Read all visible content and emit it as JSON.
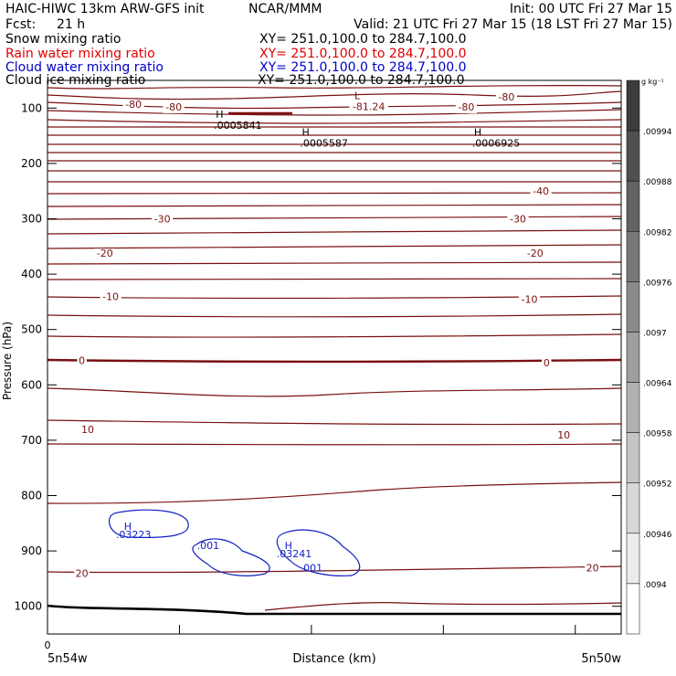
{
  "header": {
    "model": "HAIC-HIWC 13km ARW-GFS init",
    "org": "NCAR/MMM",
    "init": "Init: 00 UTC Fri 27 Mar 15",
    "fcst_label": "Fcst:",
    "fcst_value": "21 h",
    "valid": "Valid: 21 UTC Fri 27 Mar 15 (18 LST Fri 27 Mar 15)"
  },
  "fields": [
    {
      "name": "Snow mixing ratio",
      "xy": "XY= 251.0,100.0 to 284.7,100.0",
      "color": "#000000"
    },
    {
      "name": "Rain water mixing ratio",
      "xy": "XY= 251.0,100.0 to 284.7,100.0",
      "color": "#e00000"
    },
    {
      "name": "Cloud water mixing ratio",
      "xy": "XY= 251.0,100.0 to 284.7,100.0",
      "color": "#0000c8"
    },
    {
      "name": "Cloud ice mixing ratio",
      "xy": "XY= 251.0,100.0 to 284.7,100.0",
      "color": "#000000"
    }
  ],
  "chart_data": {
    "type": "contour",
    "xlabel": "Distance (km)",
    "ylabel": "Pressure (hPa)",
    "x_ticks": [
      {
        "label": "0"
      }
    ],
    "x_end_labels": [
      "5n54w",
      "5n50w"
    ],
    "y_ticks": [
      100,
      200,
      300,
      400,
      500,
      600,
      700,
      800,
      900,
      1000
    ],
    "ylim": [
      1050,
      50
    ],
    "temperature_labels": [
      {
        "text": "-80",
        "p": 93,
        "x": 0.15
      },
      {
        "text": "-80",
        "p": 98,
        "x": 0.22
      },
      {
        "text": "-80",
        "p": 80,
        "x": 0.8
      },
      {
        "text": "-80",
        "p": 98,
        "x": 0.73
      },
      {
        "text": "-81.24",
        "p": 97,
        "x": 0.56
      },
      {
        "text": "-40",
        "p": 250,
        "x": 0.86
      },
      {
        "text": "-30",
        "p": 300,
        "x": 0.2
      },
      {
        "text": "-30",
        "p": 300,
        "x": 0.82
      },
      {
        "text": "-20",
        "p": 362,
        "x": 0.1
      },
      {
        "text": "-20",
        "p": 362,
        "x": 0.85
      },
      {
        "text": "-10",
        "p": 440,
        "x": 0.11
      },
      {
        "text": "-10",
        "p": 445,
        "x": 0.84
      },
      {
        "text": "0",
        "p": 556,
        "x": 0.06
      },
      {
        "text": "0",
        "p": 560,
        "x": 0.87
      },
      {
        "text": "10",
        "p": 680,
        "x": 0.07
      },
      {
        "text": "10",
        "p": 690,
        "x": 0.9
      },
      {
        "text": "20",
        "p": 940,
        "x": 0.06
      },
      {
        "text": "20",
        "p": 930,
        "x": 0.95
      }
    ],
    "low_marker": {
      "symbol": "L",
      "p": 77,
      "x": 0.54
    },
    "high_markers": [
      {
        "symbol": "H",
        "value": ".0005841",
        "p": 118,
        "x": 0.3
      },
      {
        "symbol": "H",
        "value": ".0005587",
        "p": 150,
        "x": 0.45
      },
      {
        "symbol": "H",
        "value": ".0006925",
        "p": 150,
        "x": 0.75
      }
    ],
    "cloud_water_labels": [
      {
        "text": "H",
        "p": 855,
        "x": 0.14
      },
      {
        "text": ".03223",
        "p": 870,
        "x": 0.15
      },
      {
        "text": ".001",
        "p": 890,
        "x": 0.28
      },
      {
        "text": "H",
        "p": 890,
        "x": 0.42
      },
      {
        "text": ".03241",
        "p": 905,
        "x": 0.43
      },
      {
        "text": ".001",
        "p": 930,
        "x": 0.46
      }
    ],
    "colorbar": {
      "units": "g kg⁻¹",
      "labels": [
        ".00994",
        ".00988",
        ".00982",
        ".00976",
        ".0097",
        ".00964",
        ".00958",
        ".00952",
        ".00946",
        ".0094"
      ]
    }
  }
}
